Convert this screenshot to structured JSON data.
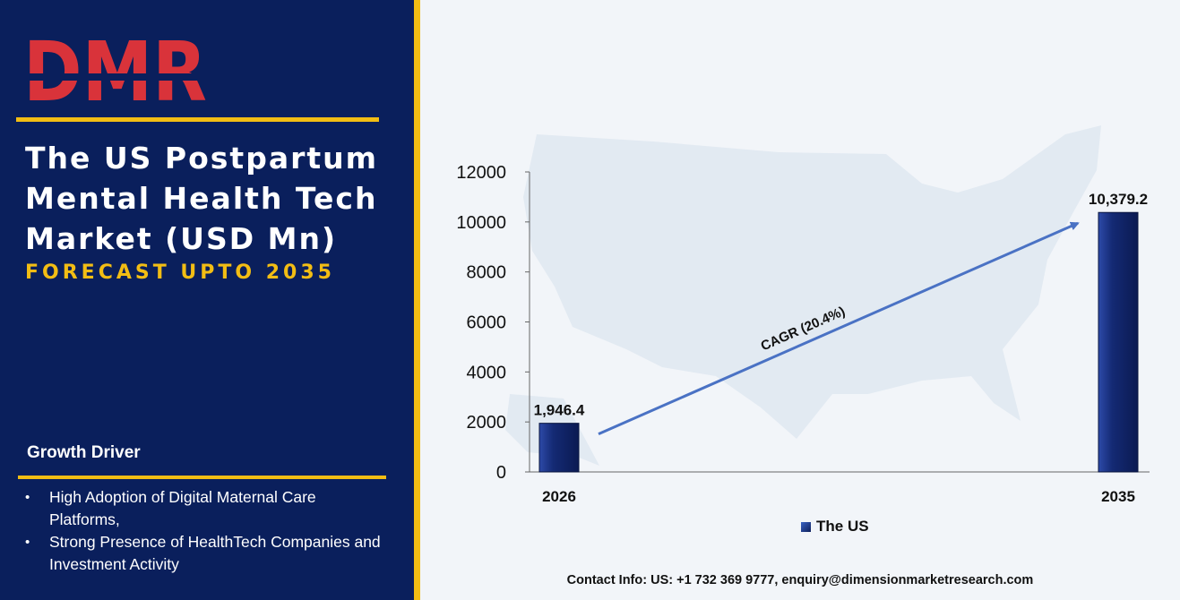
{
  "brand": {
    "logo_text": "DMR",
    "colors": {
      "navy": "#0a1f5c",
      "gold": "#f2bd14",
      "red": "#d9333a",
      "grey": "#9aa3ab"
    }
  },
  "title": {
    "lines": [
      "The US Postpartum",
      "Mental Health Tech",
      "Market (USD Mn)"
    ],
    "subtitle": "FORECAST UPTO 2035"
  },
  "growth_driver": {
    "heading": "Growth Driver",
    "items": [
      "High Adoption of Digital Maternal Care Platforms,",
      "Strong Presence of HealthTech Companies and Investment Activity"
    ]
  },
  "chart_data": {
    "type": "bar",
    "categories": [
      "2026",
      "2035"
    ],
    "series": [
      {
        "name": "The US",
        "values": [
          1946.4,
          10379.2
        ],
        "labels": [
          "1,946.4",
          "10,379.2"
        ]
      }
    ],
    "ylim": [
      0,
      12000
    ],
    "yticks": [
      "12000",
      "10000",
      "8000",
      "6000",
      "4000",
      "2000",
      "0"
    ],
    "annotation": "CAGR (20.4%)",
    "legend_position": "bottom",
    "grid": false
  },
  "contact": "Contact Info: US: +1 732 369 9777, enquiry@dimensionmarketresearch.com"
}
